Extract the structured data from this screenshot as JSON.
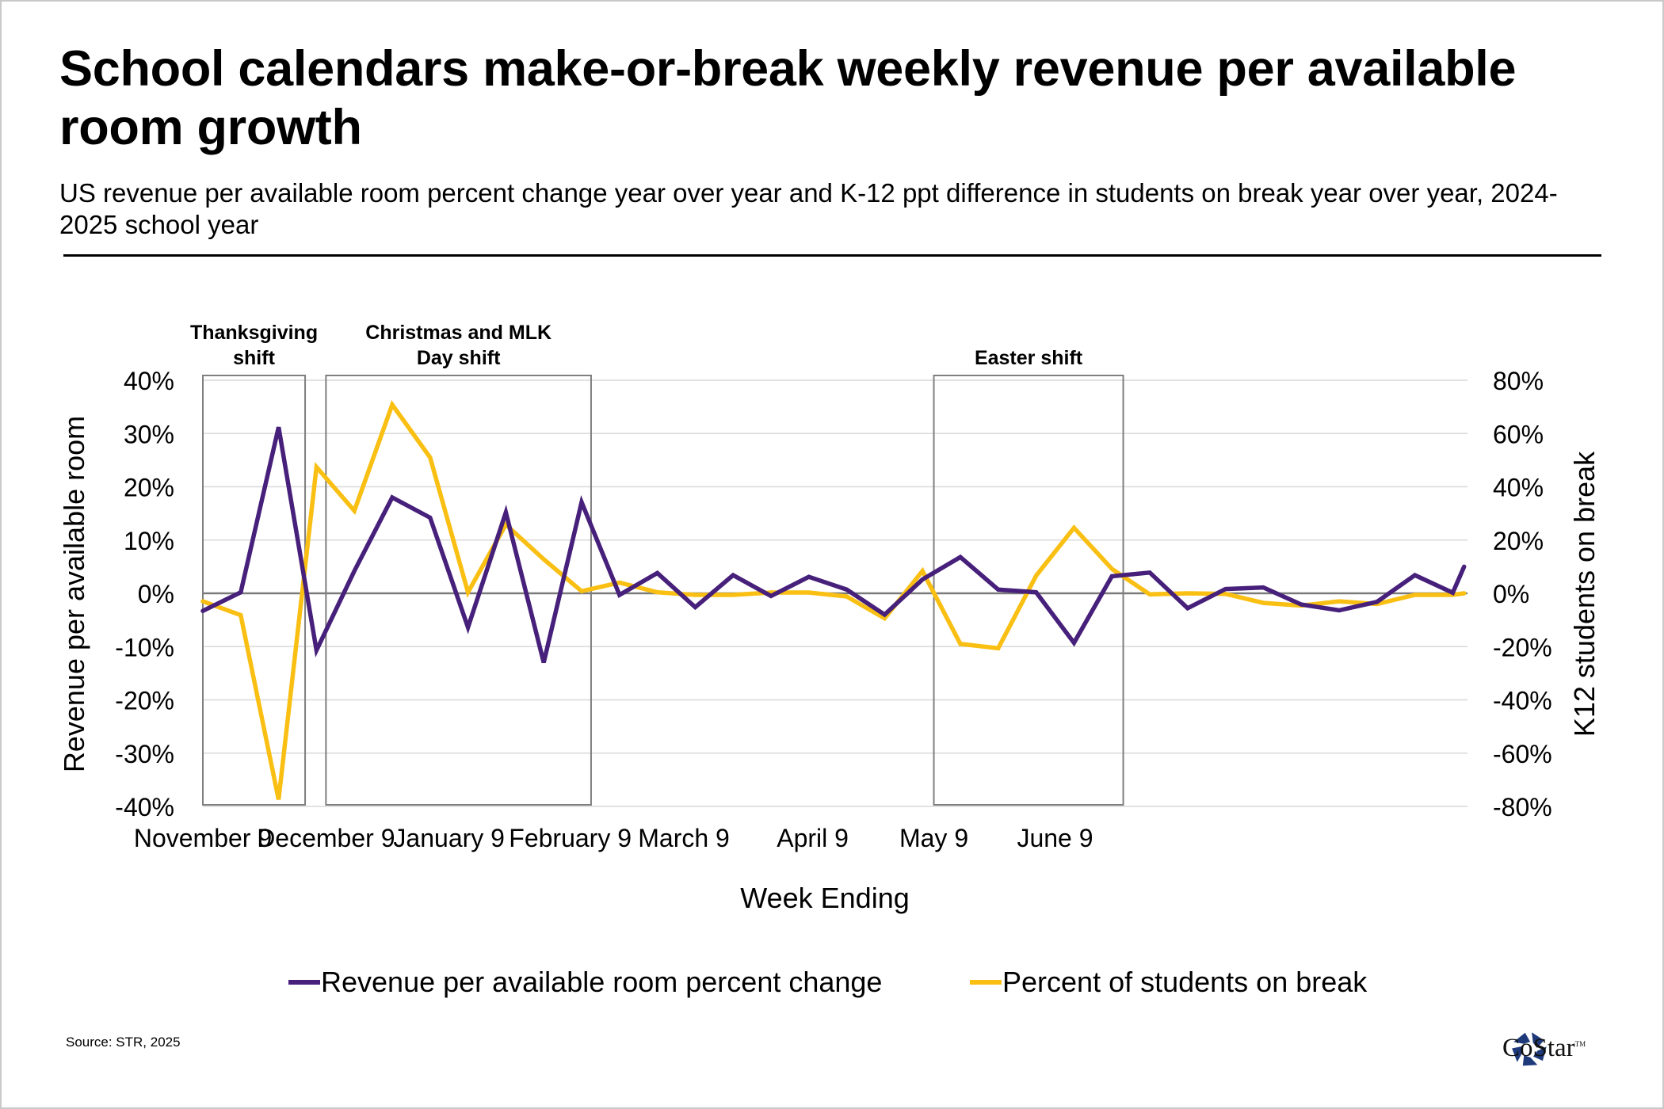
{
  "header": {
    "title": "School calendars make-or-break weekly revenue per available room growth",
    "subtitle": "US revenue per available room percent change year over year and K-12 ppt difference in students on break year over year, 2024-2025 school year"
  },
  "footer": {
    "source": "Source: STR, 2025",
    "logo_text": "CoStar",
    "logo_tm": "TM",
    "logo_color": "#1f3a7a"
  },
  "chart_data": {
    "type": "line",
    "title": "School calendars make-or-break weekly revenue per available room growth",
    "xlabel": "Week Ending",
    "ylabel": "Revenue per available room",
    "y2label": "K12 students on break",
    "ylim": [
      -40,
      40
    ],
    "y2lim": [
      -80,
      80
    ],
    "yticks": [
      "40%",
      "30%",
      "20%",
      "10%",
      "0%",
      "-10%",
      "-20%",
      "-30%",
      "-40%"
    ],
    "y2ticks": [
      "80%",
      "60%",
      "40%",
      "20%",
      "0%",
      "-20%",
      "-40%",
      "-60%",
      "-80%"
    ],
    "ytick_values": [
      40,
      30,
      20,
      10,
      0,
      -10,
      -20,
      -30,
      -40
    ],
    "grid": true,
    "legend_position": "bottom",
    "x_tick_labels": [
      {
        "label": "November 9",
        "week": 0
      },
      {
        "label": "December 9",
        "week": 3.25
      },
      {
        "label": "January 9",
        "week": 6.5
      },
      {
        "label": "February 9",
        "week": 9.7
      },
      {
        "label": "March 9",
        "week": 12.7
      },
      {
        "label": "April 9",
        "week": 16.1
      },
      {
        "label": "May 9",
        "week": 19.3
      },
      {
        "label": "June 9",
        "week": 22.5
      }
    ],
    "weeks": [
      0,
      1,
      2,
      3,
      4,
      5,
      6,
      7,
      8,
      9,
      10,
      11,
      12,
      13,
      14,
      15,
      16,
      17,
      18,
      19,
      20,
      21,
      22,
      23,
      24,
      25,
      26,
      27,
      28,
      29,
      30,
      31,
      32,
      33,
      33.3
    ],
    "series": [
      {
        "name": "Revenue per available room percent change",
        "axis": "left",
        "color": "#46207a",
        "values": [
          -3.3,
          0.2,
          31.2,
          -10.7,
          4.2,
          18.0,
          14.2,
          -6.4,
          15.2,
          -13.0,
          17.1,
          -0.3,
          3.8,
          -2.6,
          3.4,
          -0.5,
          3.1,
          0.7,
          -4.0,
          2.6,
          6.8,
          0.7,
          0.2,
          -9.3,
          3.2,
          3.9,
          -2.8,
          0.8,
          1.1,
          -2.1,
          -3.2,
          -1.6,
          3.4,
          0.1,
          5.0
        ]
      },
      {
        "name": "Percent of students on break",
        "axis": "right",
        "color": "#f9bf13",
        "values": [
          -3.0,
          -8.2,
          -77.4,
          47.4,
          31.0,
          70.8,
          51.0,
          0.4,
          25.8,
          12.8,
          0.8,
          4.0,
          0.4,
          -0.6,
          -0.6,
          0.3,
          0.3,
          -1.2,
          -9.4,
          8.4,
          -19.0,
          -20.6,
          6.6,
          24.6,
          9.2,
          -0.4,
          0.0,
          -0.2,
          -3.6,
          -4.6,
          -3.0,
          -4.0,
          -0.6,
          -0.6,
          0.0
        ]
      }
    ],
    "annotations": [
      {
        "label_lines": [
          "Thanksgiving",
          "shift"
        ],
        "week_start": 0,
        "week_end": 2.7
      },
      {
        "label_lines": [
          "Christmas and MLK",
          "Day shift"
        ],
        "week_start": 3.25,
        "week_end": 10.25
      },
      {
        "label_lines": [
          "Easter shift"
        ],
        "week_start": 19.3,
        "week_end": 24.3
      }
    ]
  }
}
